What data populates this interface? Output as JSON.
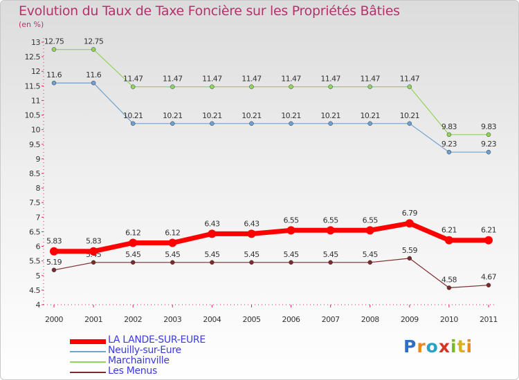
{
  "page": {
    "title": "Evolution du Taux de Taxe Foncière sur les Propriétés Bâties",
    "unit_label": "(en %)",
    "brand_letters": [
      {
        "ch": "P",
        "color": "#2d6fc4"
      },
      {
        "ch": "r",
        "color": "#e68a1a"
      },
      {
        "ch": "o",
        "color": "#2aa2c8"
      },
      {
        "ch": "x",
        "color": "#d93222"
      },
      {
        "ch": "i",
        "color": "#7ab827"
      },
      {
        "ch": "t",
        "color": "#d7b21a"
      },
      {
        "ch": "i",
        "color": "#e68a1a"
      }
    ]
  },
  "chart_data": {
    "type": "line",
    "title": "Evolution du Taux de Taxe Foncière sur les Propriétés Bâties",
    "ylabel": "(en %)",
    "xlabel": "",
    "x": [
      "2000",
      "2001",
      "2002",
      "2003",
      "2004",
      "2005",
      "2006",
      "2007",
      "2008",
      "2009",
      "2010",
      "2011"
    ],
    "ylim": [
      4,
      13
    ],
    "yticks": [
      "4",
      "4.5",
      "5",
      "5.5",
      "6",
      "6.5",
      "7",
      "7.5",
      "8",
      "8.5",
      "9",
      "9.5",
      "10",
      "10.5",
      "11",
      "11.5",
      "12",
      "12.5",
      "13"
    ],
    "grid": false,
    "legend_position": "bottom-left",
    "series": [
      {
        "name": "LA LANDE-SUR-EURE",
        "color": "#ff0000",
        "width": 7,
        "values": [
          5.83,
          5.83,
          6.12,
          6.12,
          6.43,
          6.43,
          6.55,
          6.55,
          6.55,
          6.79,
          6.21,
          6.21
        ],
        "labels": [
          "5.83",
          "5.83",
          "6.12",
          "6.12",
          "6.43",
          "6.43",
          "6.55",
          "6.55",
          "6.55",
          "6.79",
          "6.21",
          "6.21"
        ]
      },
      {
        "name": "Neuilly-sur-Eure",
        "color": "#6fa0cf",
        "width": 1.2,
        "values": [
          11.6,
          11.6,
          10.21,
          10.21,
          10.21,
          10.21,
          10.21,
          10.21,
          10.21,
          10.21,
          9.23,
          9.23
        ],
        "labels": [
          "11.6",
          "11.6",
          "10.21",
          "10.21",
          "10.21",
          "10.21",
          "10.21",
          "10.21",
          "10.21",
          "10.21",
          "9.23",
          "9.23"
        ]
      },
      {
        "name": "Marchainville",
        "color": "#90d45a",
        "width": 1.2,
        "values": [
          12.75,
          12.75,
          11.47,
          11.47,
          11.47,
          11.47,
          11.47,
          11.47,
          11.47,
          11.47,
          9.83,
          9.83
        ],
        "labels": [
          "12.75",
          "12.75",
          "11.47",
          "11.47",
          "11.47",
          "11.47",
          "11.47",
          "11.47",
          "11.47",
          "11.47",
          "9.83",
          "9.83"
        ]
      },
      {
        "name": "Les Menus",
        "color": "#7a2c2c",
        "width": 1.2,
        "values": [
          5.19,
          5.45,
          5.45,
          5.45,
          5.45,
          5.45,
          5.45,
          5.45,
          5.45,
          5.59,
          4.58,
          4.67
        ],
        "labels": [
          "5.19",
          "5.45",
          "5.45",
          "5.45",
          "5.45",
          "5.45",
          "5.45",
          "5.45",
          "5.45",
          "5.59",
          "4.58",
          "4.67"
        ]
      }
    ]
  }
}
